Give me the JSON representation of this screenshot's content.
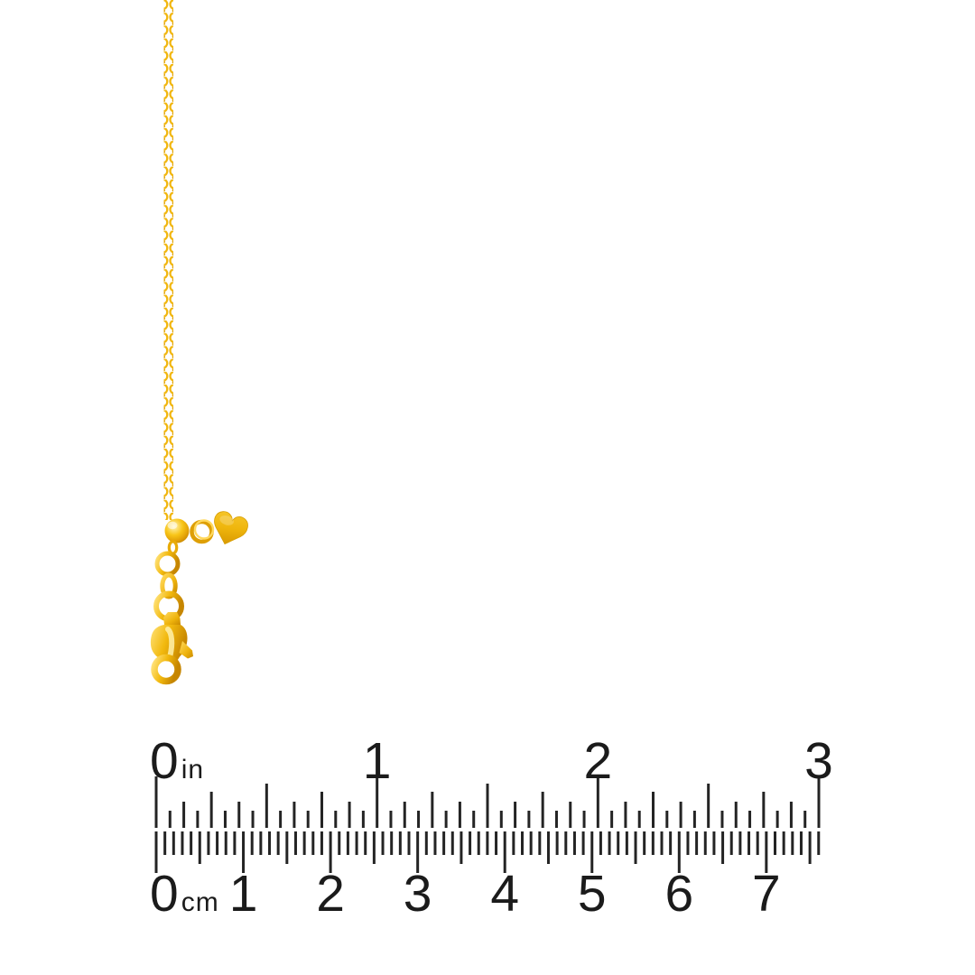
{
  "subject": "yellow-gold adjustable cable chain necklace with slider bead, heart charm tag and lobster clasp, photographed against white with a printed measurement ruler",
  "colors": {
    "background": "#ffffff",
    "ruler_ink": "#242424",
    "label_ink": "#1b1b1b",
    "gold": "#F2B90E",
    "gold_highlight": "#FFE98F",
    "gold_shadow": "#BD8302"
  },
  "ruler": {
    "inch_scale": {
      "unit": "in",
      "labels": [
        "0",
        "1",
        "2",
        "3"
      ],
      "total_units": 3,
      "ticks_per_unit": 16
    },
    "cm_scale": {
      "unit": "cm",
      "labels": [
        "0",
        "1",
        "2",
        "3",
        "4",
        "5",
        "6",
        "7"
      ],
      "total_cm_shown": 7.6,
      "ticks_per_unit": 10
    }
  }
}
